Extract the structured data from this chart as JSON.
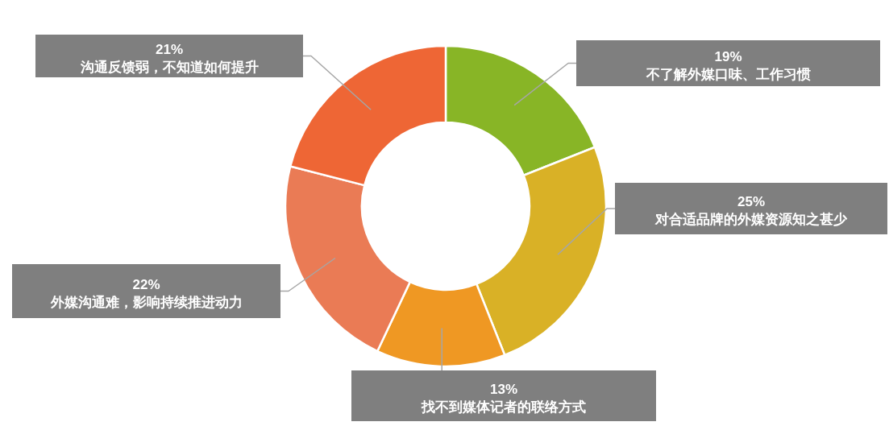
{
  "chart_data": {
    "type": "donut",
    "categories": [
      "不了解外媒口味、工作习惯",
      "对合适品牌的外媒资源知之甚少",
      "找不到媒体记者的联络方式",
      "外媒沟通难，影响持续推进动力",
      "沟通反馈弱，不知道如何提升"
    ],
    "values": [
      19,
      25,
      13,
      22,
      21
    ],
    "colors": [
      "#88b526",
      "#d9b126",
      "#ef9823",
      "#ea7b55",
      "#ee6635"
    ],
    "value_labels": [
      "19%",
      "25%",
      "13%",
      "22%",
      "21%"
    ]
  }
}
